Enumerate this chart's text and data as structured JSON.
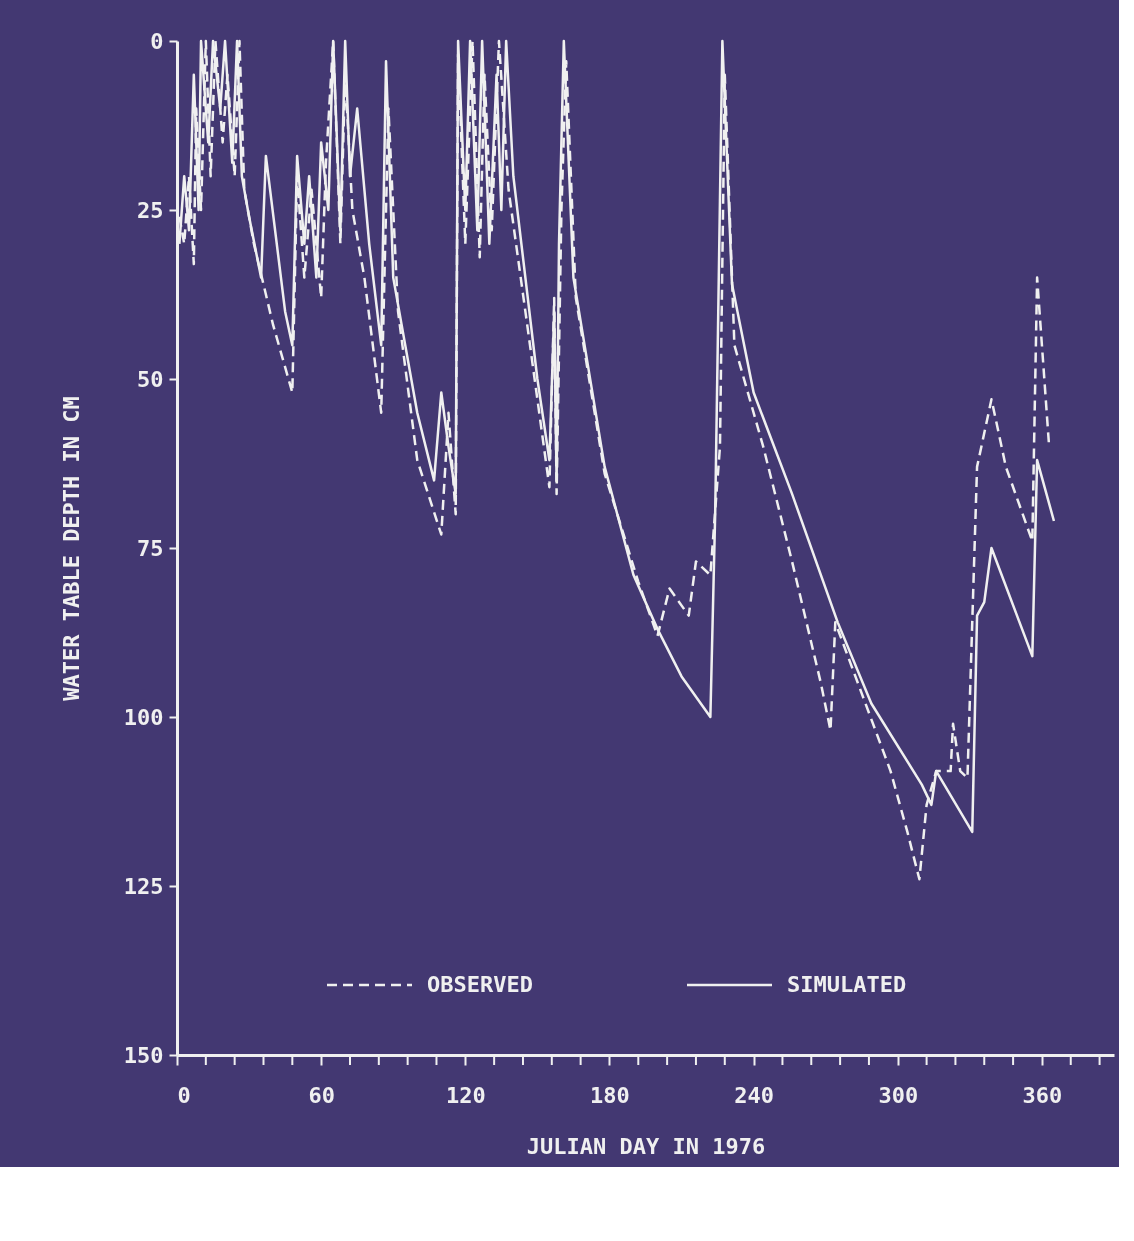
{
  "chart_data": {
    "type": "line",
    "xlabel": "JULIAN DAY IN 1976",
    "ylabel": "WATER TABLE DEPTH IN CM",
    "xlim": [
      0,
      390
    ],
    "xticks": [
      0,
      {
        "value": 12,
        "label": null
      },
      {
        "value": 24,
        "label": null
      },
      {
        "value": 36,
        "label": null
      },
      {
        "value": 48,
        "label": null
      },
      60,
      {
        "value": 72,
        "label": null
      },
      {
        "value": 84,
        "label": null
      },
      {
        "value": 96,
        "label": null
      },
      {
        "value": 108,
        "label": null
      },
      120,
      {
        "value": 132,
        "label": null
      },
      {
        "value": 144,
        "label": null
      },
      {
        "value": 156,
        "label": null
      },
      {
        "value": 168,
        "label": null
      },
      180,
      {
        "value": 192,
        "label": null
      },
      {
        "value": 204,
        "label": null
      },
      {
        "value": 216,
        "label": null
      },
      {
        "value": 228,
        "label": null
      },
      240,
      {
        "value": 252,
        "label": null
      },
      {
        "value": 264,
        "label": null
      },
      {
        "value": 276,
        "label": null
      },
      {
        "value": 288,
        "label": null
      },
      300,
      {
        "value": 312,
        "label": null
      },
      {
        "value": 324,
        "label": null
      },
      {
        "value": 336,
        "label": null
      },
      {
        "value": 348,
        "label": null
      },
      360,
      {
        "value": 372,
        "label": null
      },
      {
        "value": 384,
        "label": null
      }
    ],
    "ylim": [
      150,
      0
    ],
    "yticks": [
      0,
      25,
      50,
      75,
      100,
      125,
      150
    ],
    "grid": false,
    "legend": "bottom",
    "series": [
      {
        "name": "OBSERVED",
        "color": "#f0f0f0",
        "line_style": "dashed",
        "x": [
          1,
          3,
          5,
          7,
          8,
          10,
          12,
          14,
          16,
          19,
          21,
          24,
          26,
          28,
          32,
          40,
          48,
          50,
          53,
          56,
          60,
          62,
          65,
          68,
          70,
          73,
          78,
          85,
          88,
          92,
          100,
          110,
          113,
          116,
          117,
          120,
          123,
          126,
          128,
          131,
          134,
          138,
          145,
          155,
          157,
          158,
          160,
          162,
          166,
          178,
          192,
          200,
          205,
          213,
          216,
          222,
          226,
          228,
          232,
          244,
          256,
          268,
          272,
          274,
          297,
          304,
          309,
          312,
          316,
          322,
          323,
          326,
          329,
          333,
          339,
          345,
          356,
          358,
          363
        ],
        "values": [
          26,
          30,
          20,
          33,
          10,
          25,
          0,
          20,
          0,
          15,
          5,
          20,
          0,
          22,
          30,
          42,
          52,
          20,
          35,
          22,
          38,
          18,
          0,
          30,
          5,
          25,
          35,
          55,
          10,
          40,
          62,
          73,
          55,
          70,
          2,
          30,
          0,
          32,
          5,
          28,
          0,
          22,
          40,
          66,
          38,
          67,
          25,
          3,
          38,
          64,
          80,
          88,
          81,
          85,
          77,
          79,
          60,
          5,
          45,
          60,
          77,
          95,
          102,
          86,
          108,
          117,
          124,
          113,
          108,
          108,
          101,
          108,
          109,
          63,
          53,
          63,
          74,
          35,
          60
        ]
      },
      {
        "name": "SIMULATED",
        "color": "#f0f0f0",
        "line_style": "solid",
        "x": [
          1,
          3,
          5,
          7,
          9,
          10,
          13,
          15,
          18,
          20,
          23,
          25,
          27,
          30,
          35,
          37,
          45,
          48,
          50,
          53,
          55,
          58,
          60,
          63,
          65,
          68,
          70,
          72,
          75,
          80,
          85,
          87,
          90,
          100,
          107,
          110,
          113,
          116,
          117,
          120,
          122,
          125,
          127,
          130,
          133,
          135,
          137,
          140,
          145,
          150,
          155,
          157,
          158,
          159,
          161,
          165,
          178,
          190,
          200,
          210,
          222,
          224,
          227,
          231,
          240,
          256,
          275,
          289,
          310,
          314,
          316,
          331,
          333,
          336,
          339,
          356,
          358,
          365
        ],
        "values": [
          30,
          20,
          28,
          5,
          25,
          0,
          15,
          0,
          10,
          0,
          18,
          0,
          20,
          26,
          35,
          17,
          40,
          45,
          17,
          30,
          20,
          35,
          15,
          25,
          0,
          28,
          0,
          20,
          10,
          30,
          45,
          3,
          35,
          55,
          65,
          52,
          60,
          67,
          0,
          25,
          0,
          28,
          0,
          30,
          5,
          25,
          0,
          20,
          35,
          50,
          62,
          40,
          65,
          30,
          0,
          35,
          63,
          79,
          87,
          94,
          100,
          70,
          0,
          36,
          52,
          67,
          86,
          98,
          110,
          113,
          108,
          117,
          85,
          83,
          75,
          91,
          62,
          71
        ]
      }
    ]
  }
}
